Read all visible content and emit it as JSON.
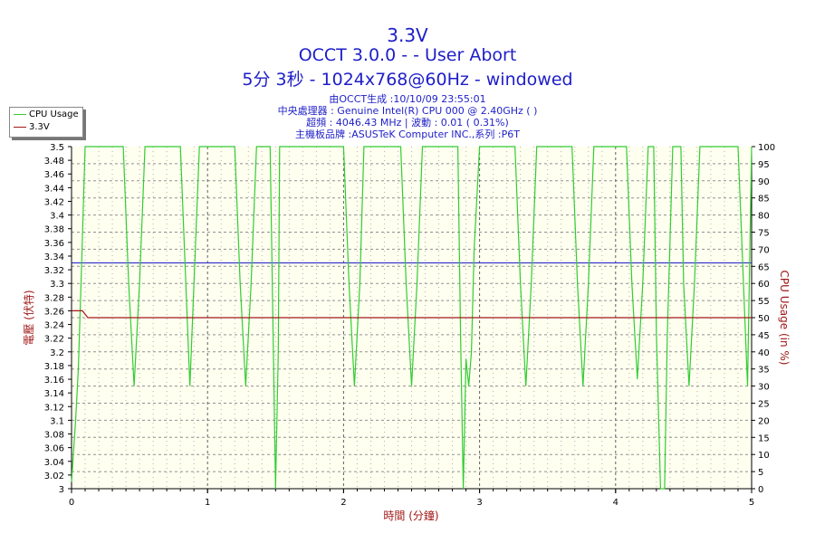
{
  "title": "3.3V",
  "subtitle1": "OCCT 3.0.0 -  - User Abort",
  "subtitle2": "5分 3秒 - 1024x768@60Hz - windowed",
  "info": [
    "由OCCT生成 :10/10/09 23:55:01",
    "中央處理器 : Genuine Intel(R) CPU 000 @ 2.40GHz (  )",
    "超頻 : 4046.43 MHz | 波動 : 0.01 ( 0.31%)",
    "主機板品牌 :ASUSTeK Computer INC.,系列 :P6T"
  ],
  "legend": [
    {
      "label": "CPU Usage",
      "color": "#33cc33"
    },
    {
      "label": "3.3V",
      "color": "#a01818"
    }
  ],
  "chart_data": {
    "type": "line",
    "xlabel": "時間 (分鐘)",
    "ylabel_left": "電壓 (伏特)",
    "ylabel_right": "CPU Usage (in %)",
    "xlim": [
      0,
      5
    ],
    "ylim_left": [
      3.0,
      3.5
    ],
    "ylim_right": [
      0,
      100
    ],
    "x_ticks": [
      0,
      1,
      2,
      3,
      4,
      5
    ],
    "y_ticks_left": [
      3,
      3.02,
      3.04,
      3.06,
      3.08,
      3.1,
      3.12,
      3.14,
      3.16,
      3.18,
      3.2,
      3.22,
      3.24,
      3.26,
      3.28,
      3.3,
      3.32,
      3.34,
      3.36,
      3.38,
      3.4,
      3.42,
      3.44,
      3.46,
      3.48,
      3.5
    ],
    "y_ticks_right": [
      0,
      5,
      10,
      15,
      20,
      25,
      30,
      35,
      40,
      45,
      50,
      55,
      60,
      65,
      70,
      75,
      80,
      85,
      90,
      95,
      100
    ],
    "grid": true,
    "legend_position": "top-left",
    "reference_line": {
      "value": 3.33,
      "color": "#1e1ec8"
    },
    "series": [
      {
        "name": "CPU Usage",
        "axis": "right",
        "color": "#33cc33",
        "x": [
          0,
          0.03,
          0.05,
          0.07,
          0.1,
          0.38,
          0.42,
          0.46,
          0.5,
          0.54,
          0.8,
          0.84,
          0.87,
          0.9,
          0.94,
          1.2,
          1.24,
          1.28,
          1.32,
          1.36,
          1.46,
          1.48,
          1.5,
          1.52,
          1.53,
          2.0,
          2.04,
          2.08,
          2.12,
          2.15,
          2.42,
          2.46,
          2.5,
          2.54,
          2.58,
          2.84,
          2.86,
          2.88,
          2.9,
          2.92,
          2.94,
          2.96,
          3.0,
          3.26,
          3.3,
          3.34,
          3.38,
          3.42,
          3.68,
          3.72,
          3.76,
          3.8,
          3.84,
          4.08,
          4.12,
          4.16,
          4.2,
          4.24,
          4.28,
          4.3,
          4.33,
          4.35,
          4.36,
          4.38,
          4.42,
          4.48,
          4.5,
          4.54,
          4.58,
          4.62,
          4.65,
          4.9,
          4.94,
          4.97,
          5.0
        ],
        "values": [
          2,
          20,
          35,
          60,
          100,
          100,
          60,
          30,
          60,
          100,
          100,
          60,
          30,
          60,
          100,
          100,
          60,
          30,
          60,
          100,
          100,
          50,
          0,
          40,
          100,
          100,
          60,
          30,
          60,
          100,
          100,
          60,
          30,
          60,
          100,
          100,
          45,
          0,
          38,
          30,
          40,
          70,
          100,
          100,
          60,
          30,
          60,
          100,
          100,
          60,
          30,
          60,
          100,
          100,
          60,
          32,
          60,
          100,
          100,
          45,
          0,
          0,
          0,
          45,
          100,
          100,
          60,
          30,
          60,
          100,
          100,
          100,
          60,
          30,
          100
        ]
      },
      {
        "name": "3.3V",
        "axis": "left",
        "color": "#a01818",
        "x": [
          0,
          0.08,
          0.12,
          5.0
        ],
        "values": [
          3.26,
          3.26,
          3.25,
          3.25
        ]
      }
    ]
  }
}
